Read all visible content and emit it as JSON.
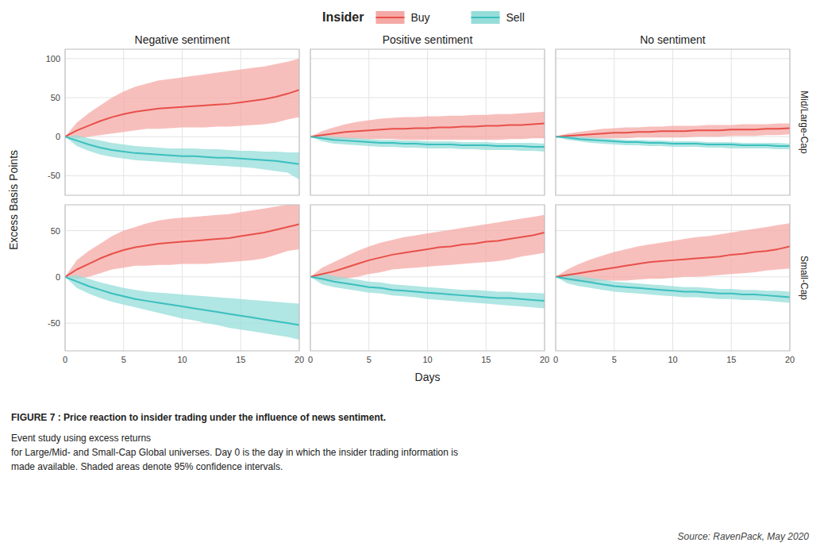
{
  "chart_data": [
    {
      "type": "line",
      "title": "Negative sentiment",
      "y_label": "Excess Basis Points",
      "legend": "top",
      "legend_title": "Insider",
      "x": [
        0,
        1,
        2,
        3,
        4,
        5,
        6,
        7,
        8,
        9,
        10,
        11,
        12,
        13,
        14,
        15,
        16,
        17,
        18,
        19,
        20
      ],
      "xlim": [
        0,
        20
      ],
      "xticks": [
        0,
        5,
        10,
        15,
        20
      ],
      "ylim": [
        -75,
        112
      ],
      "yticks": [
        -50,
        0,
        50,
        100
      ],
      "grid": true,
      "tick_labels": "y",
      "series": [
        {
          "name": "Buy",
          "color": "#E8504A",
          "fill_color": "#F4A9A6",
          "values": [
            0,
            8,
            14,
            20,
            25,
            29,
            32,
            34,
            36,
            37,
            38,
            39,
            40,
            41,
            42,
            44,
            46,
            48,
            51,
            55,
            60
          ],
          "upper": [
            0,
            18,
            30,
            40,
            50,
            58,
            64,
            68,
            72,
            74,
            76,
            78,
            80,
            82,
            84,
            86,
            88,
            90,
            93,
            96,
            100
          ],
          "lower": [
            0,
            -2,
            0,
            2,
            4,
            6,
            8,
            10,
            10,
            11,
            12,
            12,
            12,
            13,
            13,
            14,
            15,
            16,
            18,
            22,
            25
          ]
        },
        {
          "name": "Sell",
          "color": "#3BBFBF",
          "fill_color": "#96DDD9",
          "values": [
            0,
            -5,
            -10,
            -14,
            -17,
            -19,
            -21,
            -22,
            -23,
            -24,
            -25,
            -25,
            -26,
            -27,
            -27,
            -28,
            -29,
            -30,
            -31,
            -33,
            -35
          ],
          "upper": [
            0,
            2,
            -2,
            -5,
            -8,
            -10,
            -12,
            -13,
            -14,
            -15,
            -15,
            -15,
            -16,
            -16,
            -17,
            -18,
            -18,
            -19,
            -19,
            -20,
            -20
          ],
          "lower": [
            0,
            -12,
            -18,
            -23,
            -26,
            -28,
            -30,
            -31,
            -32,
            -33,
            -34,
            -35,
            -36,
            -37,
            -38,
            -39,
            -40,
            -42,
            -44,
            -46,
            -55
          ]
        }
      ]
    },
    {
      "type": "line",
      "title": "Positive sentiment",
      "x": [
        0,
        1,
        2,
        3,
        4,
        5,
        6,
        7,
        8,
        9,
        10,
        11,
        12,
        13,
        14,
        15,
        16,
        17,
        18,
        19,
        20
      ],
      "xlim": [
        0,
        20
      ],
      "xticks": [
        0,
        5,
        10,
        15,
        20
      ],
      "ylim": [
        -75,
        112
      ],
      "yticks": [
        -50,
        0,
        50,
        100
      ],
      "grid": true,
      "tick_labels": false,
      "series": [
        {
          "name": "Buy",
          "color": "#E8504A",
          "fill_color": "#F4A9A6",
          "values": [
            0,
            2,
            4,
            6,
            7,
            8,
            9,
            10,
            10,
            11,
            11,
            12,
            12,
            13,
            13,
            14,
            14,
            15,
            15,
            16,
            17
          ],
          "upper": [
            0,
            7,
            12,
            16,
            19,
            21,
            23,
            24,
            25,
            25,
            26,
            26,
            27,
            27,
            28,
            28,
            29,
            29,
            30,
            31,
            32
          ],
          "lower": [
            0,
            -2,
            -3,
            -3,
            -3,
            -3,
            -3,
            -3,
            -4,
            -4,
            -4,
            -4,
            -4,
            -4,
            -4,
            -4,
            -4,
            -3,
            -3,
            -2,
            -2
          ]
        },
        {
          "name": "Sell",
          "color": "#3BBFBF",
          "fill_color": "#96DDD9",
          "values": [
            0,
            -2,
            -4,
            -5,
            -6,
            -7,
            -8,
            -8,
            -9,
            -9,
            -10,
            -10,
            -10,
            -11,
            -11,
            -11,
            -12,
            -12,
            -12,
            -13,
            -13
          ],
          "upper": [
            0,
            2,
            0,
            -1,
            -2,
            -3,
            -4,
            -4,
            -5,
            -5,
            -6,
            -6,
            -6,
            -7,
            -7,
            -7,
            -8,
            -8,
            -8,
            -8,
            -9
          ],
          "lower": [
            0,
            -6,
            -9,
            -10,
            -11,
            -12,
            -13,
            -13,
            -14,
            -14,
            -15,
            -15,
            -15,
            -16,
            -16,
            -17,
            -17,
            -17,
            -18,
            -18,
            -19
          ]
        }
      ]
    },
    {
      "type": "line",
      "title": "No sentiment",
      "subtitle": "Mid/Large-Cap",
      "x": [
        0,
        1,
        2,
        3,
        4,
        5,
        6,
        7,
        8,
        9,
        10,
        11,
        12,
        13,
        14,
        15,
        16,
        17,
        18,
        19,
        20
      ],
      "xlim": [
        0,
        20
      ],
      "xticks": [
        0,
        5,
        10,
        15,
        20
      ],
      "ylim": [
        -75,
        112
      ],
      "yticks": [
        -50,
        0,
        50,
        100
      ],
      "grid": true,
      "tick_labels": false,
      "series": [
        {
          "name": "Buy",
          "color": "#E8504A",
          "fill_color": "#F4A9A6",
          "values": [
            0,
            1,
            2,
            3,
            4,
            5,
            5,
            6,
            6,
            7,
            7,
            7,
            8,
            8,
            8,
            9,
            9,
            9,
            10,
            10,
            11
          ],
          "upper": [
            0,
            4,
            6,
            8,
            10,
            11,
            12,
            12,
            13,
            13,
            14,
            14,
            14,
            15,
            15,
            15,
            16,
            16,
            16,
            17,
            17
          ],
          "lower": [
            0,
            -2,
            -2,
            -2,
            -2,
            -2,
            -2,
            -1,
            -1,
            -1,
            -1,
            -1,
            0,
            0,
            0,
            1,
            1,
            1,
            2,
            2,
            3
          ]
        },
        {
          "name": "Sell",
          "color": "#3BBFBF",
          "fill_color": "#96DDD9",
          "values": [
            0,
            -1,
            -3,
            -4,
            -5,
            -6,
            -7,
            -7,
            -8,
            -8,
            -9,
            -9,
            -9,
            -10,
            -10,
            -10,
            -11,
            -11,
            -11,
            -12,
            -12
          ],
          "upper": [
            0,
            2,
            0,
            -1,
            -2,
            -3,
            -4,
            -4,
            -5,
            -5,
            -6,
            -6,
            -6,
            -7,
            -7,
            -7,
            -8,
            -8,
            -8,
            -8,
            -9
          ],
          "lower": [
            0,
            -4,
            -6,
            -8,
            -9,
            -10,
            -11,
            -11,
            -12,
            -12,
            -13,
            -13,
            -13,
            -14,
            -14,
            -15,
            -15,
            -15,
            -15,
            -16,
            -16
          ]
        }
      ]
    },
    {
      "type": "line",
      "x": [
        0,
        1,
        2,
        3,
        4,
        5,
        6,
        7,
        8,
        9,
        10,
        11,
        12,
        13,
        14,
        15,
        16,
        17,
        18,
        19,
        20
      ],
      "xlim": [
        0,
        20
      ],
      "xticks": [
        0,
        5,
        10,
        15,
        20
      ],
      "ylim": [
        -80,
        78
      ],
      "yticks": [
        -50,
        0,
        50
      ],
      "grid": true,
      "tick_labels": true,
      "series": [
        {
          "name": "Buy",
          "color": "#E8504A",
          "fill_color": "#F4A9A6",
          "values": [
            0,
            8,
            14,
            20,
            25,
            29,
            32,
            34,
            36,
            37,
            38,
            39,
            40,
            41,
            42,
            44,
            46,
            48,
            51,
            54,
            57
          ],
          "upper": [
            0,
            18,
            28,
            36,
            44,
            50,
            54,
            58,
            61,
            63,
            64,
            65,
            66,
            67,
            68,
            70,
            72,
            74,
            76,
            78,
            80
          ],
          "lower": [
            0,
            -2,
            0,
            4,
            8,
            10,
            12,
            12,
            13,
            13,
            14,
            14,
            14,
            15,
            16,
            17,
            18,
            20,
            24,
            28,
            30
          ]
        },
        {
          "name": "Sell",
          "color": "#3BBFBF",
          "fill_color": "#96DDD9",
          "values": [
            0,
            -5,
            -10,
            -14,
            -18,
            -21,
            -24,
            -26,
            -28,
            -30,
            -32,
            -34,
            -36,
            -38,
            -40,
            -42,
            -44,
            -46,
            -48,
            -50,
            -52
          ],
          "upper": [
            0,
            2,
            -2,
            -6,
            -9,
            -12,
            -14,
            -16,
            -17,
            -18,
            -19,
            -20,
            -21,
            -22,
            -23,
            -24,
            -25,
            -26,
            -27,
            -28,
            -29
          ],
          "lower": [
            0,
            -12,
            -18,
            -23,
            -27,
            -30,
            -33,
            -36,
            -39,
            -42,
            -45,
            -47,
            -50,
            -52,
            -55,
            -57,
            -59,
            -61,
            -63,
            -65,
            -68
          ]
        }
      ]
    },
    {
      "type": "line",
      "x_label": "Days",
      "x": [
        0,
        1,
        2,
        3,
        4,
        5,
        6,
        7,
        8,
        9,
        10,
        11,
        12,
        13,
        14,
        15,
        16,
        17,
        18,
        19,
        20
      ],
      "xlim": [
        0,
        20
      ],
      "xticks": [
        0,
        5,
        10,
        15,
        20
      ],
      "ylim": [
        -80,
        78
      ],
      "yticks": [
        -50,
        0,
        50
      ],
      "grid": true,
      "tick_labels": "x",
      "series": [
        {
          "name": "Buy",
          "color": "#E8504A",
          "fill_color": "#F4A9A6",
          "values": [
            0,
            3,
            6,
            10,
            14,
            18,
            21,
            24,
            26,
            28,
            30,
            32,
            33,
            35,
            36,
            38,
            39,
            41,
            43,
            45,
            48
          ],
          "upper": [
            0,
            10,
            16,
            22,
            28,
            33,
            37,
            40,
            43,
            45,
            47,
            49,
            51,
            53,
            55,
            57,
            59,
            61,
            63,
            65,
            67
          ],
          "lower": [
            0,
            -4,
            -4,
            -2,
            0,
            3,
            5,
            8,
            9,
            10,
            11,
            12,
            13,
            14,
            15,
            16,
            17,
            19,
            22,
            24,
            26
          ]
        },
        {
          "name": "Sell",
          "color": "#3BBFBF",
          "fill_color": "#96DDD9",
          "values": [
            0,
            -2,
            -5,
            -7,
            -9,
            -11,
            -12,
            -14,
            -15,
            -16,
            -17,
            -18,
            -19,
            -20,
            -21,
            -22,
            -23,
            -23,
            -24,
            -25,
            -26
          ],
          "upper": [
            0,
            4,
            1,
            -1,
            -3,
            -5,
            -6,
            -8,
            -9,
            -10,
            -11,
            -12,
            -13,
            -14,
            -14,
            -15,
            -16,
            -16,
            -17,
            -17,
            -18
          ],
          "lower": [
            0,
            -8,
            -11,
            -13,
            -15,
            -17,
            -18,
            -20,
            -21,
            -22,
            -24,
            -25,
            -26,
            -27,
            -28,
            -29,
            -30,
            -31,
            -32,
            -33,
            -34
          ]
        }
      ]
    },
    {
      "type": "line",
      "subtitle": "Small-Cap",
      "annotations": [
        "FIGURE 7 : Price reaction to insider trading under the influence of news sentiment.",
        "Event study using excess returns\nfor Large/Mid- and Small-Cap Global universes. Day 0 is the day in which the insider trading information is\nmade available. Shaded areas denote 95% confidence intervals.",
        "Source: RavenPack, May 2020"
      ],
      "x": [
        0,
        1,
        2,
        3,
        4,
        5,
        6,
        7,
        8,
        9,
        10,
        11,
        12,
        13,
        14,
        15,
        16,
        17,
        18,
        19,
        20
      ],
      "xlim": [
        0,
        20
      ],
      "xticks": [
        0,
        5,
        10,
        15,
        20
      ],
      "ylim": [
        -80,
        78
      ],
      "yticks": [
        -50,
        0,
        50
      ],
      "grid": true,
      "tick_labels": "x",
      "series": [
        {
          "name": "Buy",
          "color": "#E8504A",
          "fill_color": "#F4A9A6",
          "values": [
            0,
            2,
            4,
            6,
            8,
            10,
            12,
            14,
            16,
            17,
            18,
            19,
            20,
            21,
            22,
            24,
            25,
            27,
            28,
            30,
            33
          ],
          "upper": [
            0,
            8,
            14,
            19,
            23,
            27,
            30,
            33,
            35,
            37,
            39,
            41,
            43,
            44,
            46,
            48,
            50,
            52,
            54,
            56,
            58
          ],
          "lower": [
            0,
            -4,
            -5,
            -5,
            -4,
            -4,
            -4,
            -3,
            -2,
            -2,
            -1,
            0,
            0,
            1,
            2,
            3,
            4,
            5,
            7,
            8,
            9
          ]
        },
        {
          "name": "Sell",
          "color": "#3BBFBF",
          "fill_color": "#96DDD9",
          "values": [
            0,
            -2,
            -4,
            -6,
            -8,
            -10,
            -11,
            -12,
            -13,
            -14,
            -15,
            -16,
            -16,
            -17,
            -18,
            -18,
            -19,
            -19,
            -20,
            -21,
            -22
          ],
          "upper": [
            0,
            3,
            1,
            -1,
            -3,
            -5,
            -6,
            -7,
            -8,
            -9,
            -10,
            -11,
            -11,
            -12,
            -13,
            -13,
            -14,
            -14,
            -15,
            -15,
            -16
          ],
          "lower": [
            0,
            -7,
            -10,
            -12,
            -14,
            -16,
            -17,
            -18,
            -19,
            -20,
            -21,
            -22,
            -22,
            -23,
            -24,
            -24,
            -25,
            -25,
            -26,
            -27,
            -28
          ]
        }
      ]
    }
  ]
}
